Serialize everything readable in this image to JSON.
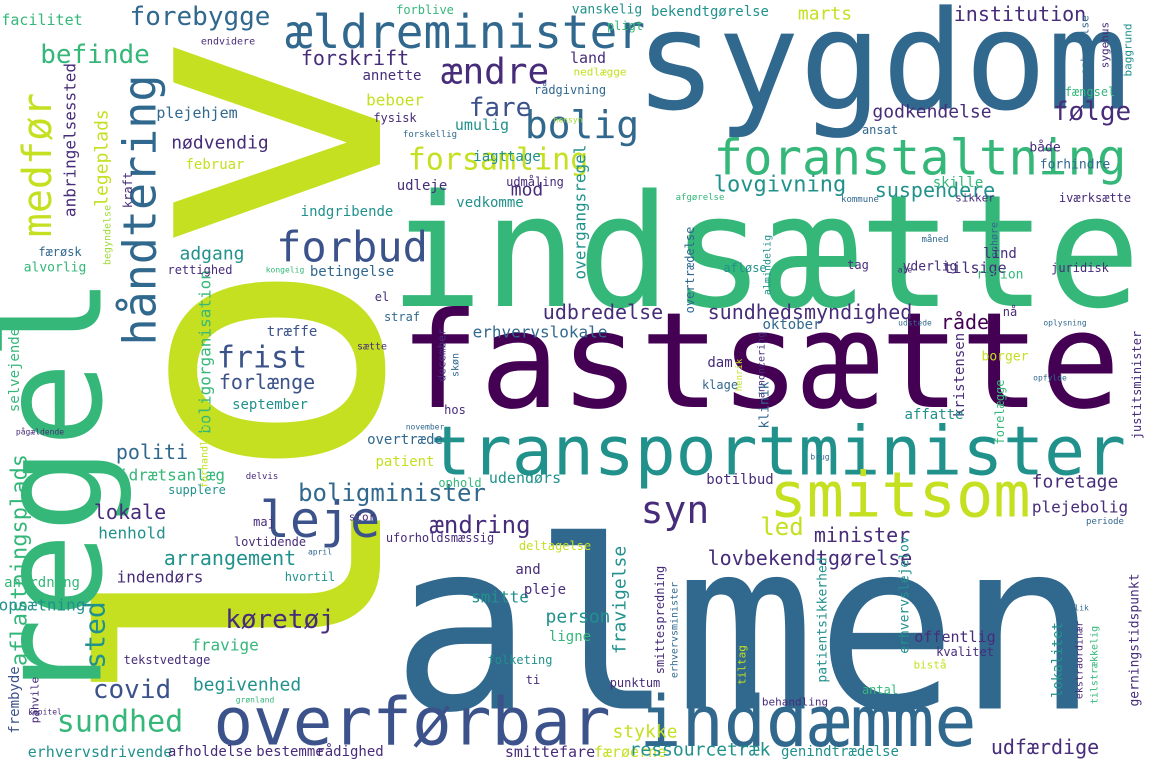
{
  "words": [
    "lov",
    "almen",
    "indsætte",
    "fastsætte",
    "sygdom",
    "regel",
    "transportminister",
    "smitsom",
    "overførbar",
    "inddæmme",
    "foranstaltning",
    "ældreminister",
    "medfør",
    "håndtering",
    "leje",
    "forbud",
    "bolig",
    "ændre",
    "fare",
    "forsamling",
    "forebygge",
    "forskrift",
    "annette",
    "befinde",
    "plejehjem",
    "nødvendig",
    "februar",
    "legeplads",
    "anbringelsessted",
    "udbredelse",
    "erhvervslokale",
    "sundhedsmyndighed",
    "oktober",
    "råde",
    "nå",
    "frist",
    "forlænge",
    "september",
    "træffe",
    "boligorganisation",
    "adgang",
    "betingelse",
    "politi",
    "idrætsanlæg",
    "boligminister",
    "syn",
    "ændring",
    "led",
    "minister",
    "lovbekendtgørelse",
    "arrangement",
    "lokale",
    "henhold",
    "indendørs",
    "aflastningsplads",
    "selvejende",
    "opsætning",
    "anordning",
    "alvorlig",
    "færøsk",
    "covid",
    "sted",
    "sundhed",
    "begivenhed",
    "køretøj",
    "fravige",
    "tekstvedtage",
    "frembyde",
    "påhvile",
    "facilitet",
    "forblive",
    "endvidere",
    "vanskelig",
    "pligt",
    "bekendtgørelse",
    "marts",
    "institution",
    "land",
    "nedlægge",
    "rådgivning",
    "beboer",
    "fysisk",
    "forskellig",
    "hensyn",
    "umulig",
    "godkendelse",
    "følge",
    "ansat",
    "fængsel",
    "ophævelse",
    "sygehus",
    "baggrund",
    "iagttage",
    "mod",
    "lovgivning",
    "suspendere",
    "udleje",
    "udmåling",
    "vedkomme",
    "indgribende",
    "kraft",
    "begyndelse",
    "skille",
    "sikker",
    "kommune",
    "overgangsregel",
    "afgørelse",
    "iværksætte",
    "både",
    "forhindre",
    "ophøre",
    "måned",
    "lind",
    "tilsige",
    "region",
    "juridisk",
    "yderlig",
    "ale",
    "tag",
    "afløse",
    "almindelig",
    "overtrædelse",
    "rettighed",
    "kongelig",
    "el",
    "straf",
    "sætte",
    "skøn",
    "december",
    "dam",
    "klage",
    "henrik",
    "annoncering",
    "klinik",
    "kristensen",
    "affatte",
    "borger",
    "udstede",
    "oplysning",
    "justitsminister",
    "opfylde",
    "forelægge",
    "hos",
    "forhandling",
    "pågældende",
    "november",
    "patient",
    "overtræde",
    "ophold",
    "brug",
    "delvis",
    "supplere",
    "stor",
    "maj",
    "uforholdsmæssig",
    "deltagelse",
    "april",
    "periode",
    "foretage",
    "plejebolig",
    "botilbud",
    "udendørs",
    "lovtidende",
    "hvortil",
    "and",
    "smitte",
    "pleje",
    "person",
    "fravigelse",
    "smittespredning",
    "erhvervsminister",
    "ligne",
    "folketing",
    "ti",
    "smittefare",
    "færøerne",
    "ressourcetræk",
    "genindtrædelse",
    "udfærdige",
    "stykke",
    "punktum",
    "tiltag",
    "behandling",
    "patientsikkerhed",
    "antal",
    "erhvervslejelov",
    "gerningstidspunkt",
    "ekstraordinær",
    "tilstrækkelig",
    "henblik",
    "lokalitet",
    "offentlig",
    "kvalitet",
    "bistå",
    "erhvervsdrivende",
    "afholdelse",
    "bestemme",
    "rådighed",
    "kapitel",
    "grønland"
  ]
}
